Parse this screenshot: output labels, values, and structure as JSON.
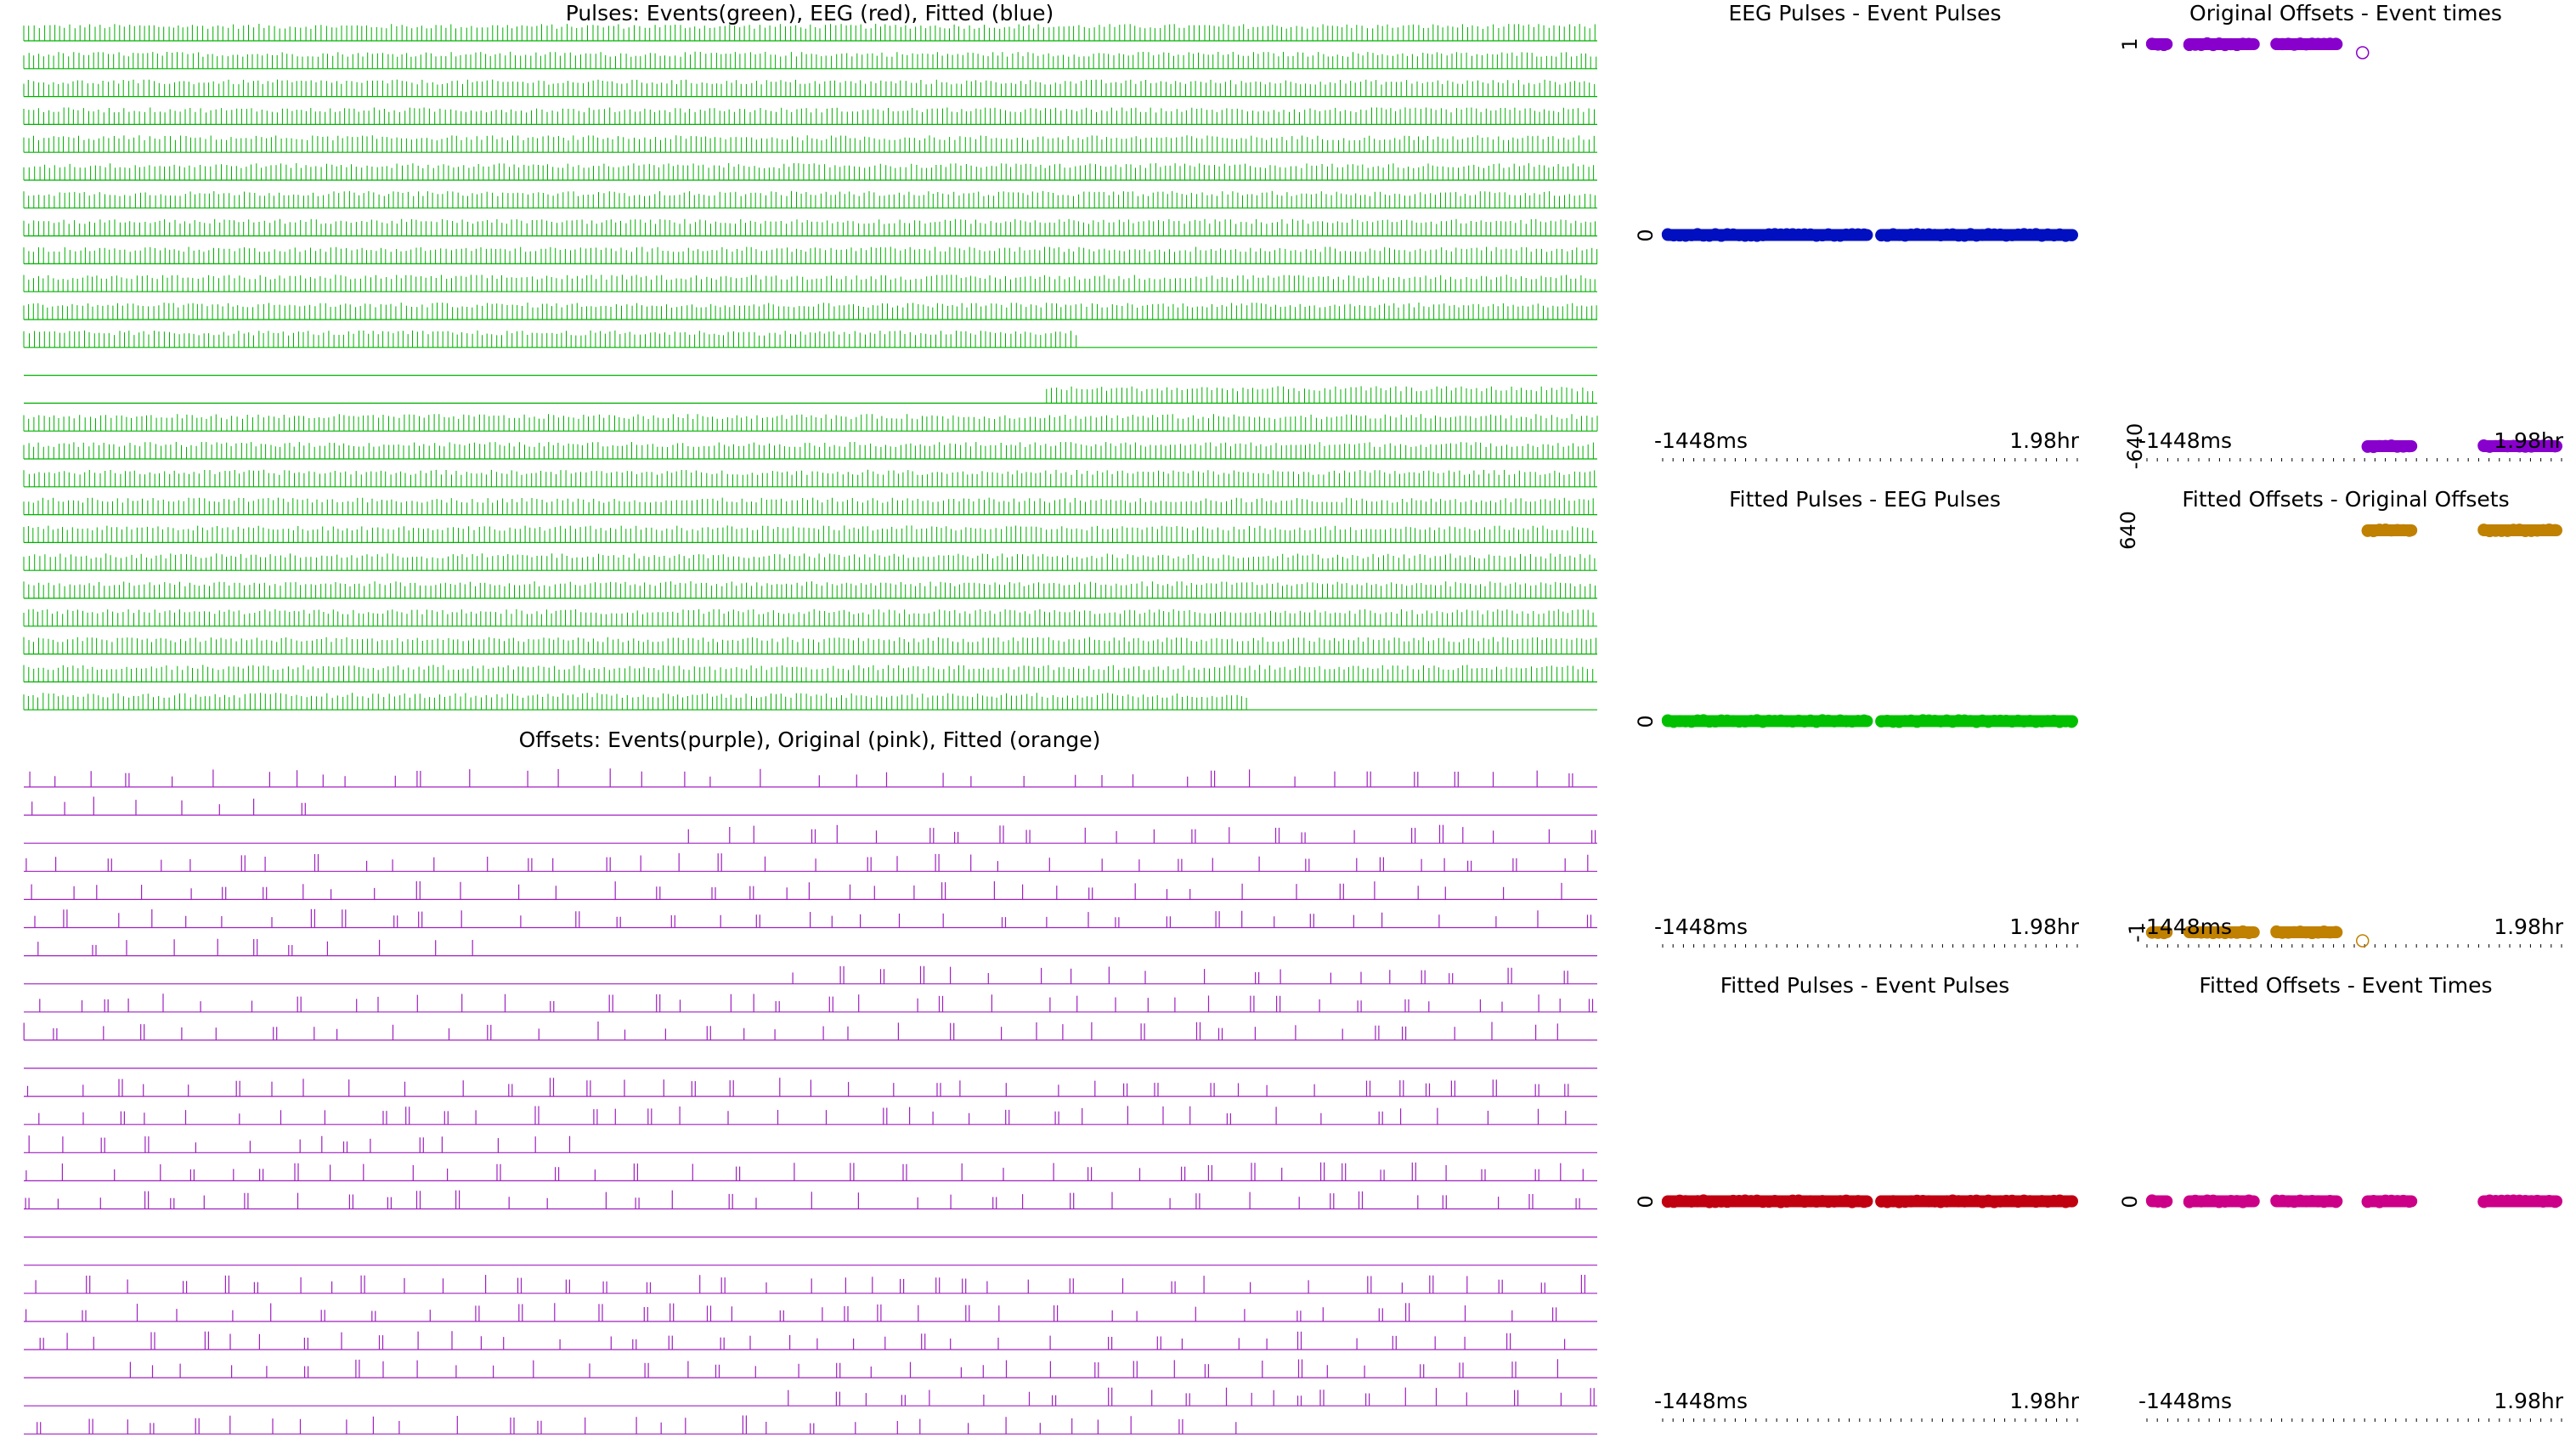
{
  "chart_data": [
    {
      "type": "line",
      "title": "Pulses: Events(green), EEG (red), Fitted (blue)",
      "color": "#00b000",
      "rows": 25,
      "empty_rows": [
        12
      ],
      "partial_rows": {
        "11": [
          0,
          0.67
        ],
        "13": [
          0.65,
          1.0
        ],
        "24": [
          0,
          0.78
        ]
      }
    },
    {
      "type": "line",
      "title": "Offsets: Events(purple), Original (pink), Fitted (orange)",
      "color": "#a020c0",
      "rows": 24,
      "empty_rows": [
        16,
        17
      ]
    },
    {
      "type": "scatter",
      "title": "EEG Pulses - Event Pulses",
      "color": "#0010c0",
      "yticks": [
        "0"
      ],
      "xticks": [
        "-1448ms",
        "1.98hr"
      ],
      "series": [
        {
          "y": 0,
          "segments": [
            [
              0.0,
              0.505
            ],
            [
              0.515,
              1.0
            ]
          ]
        }
      ]
    },
    {
      "type": "scatter",
      "title": "Original Offsets - Event times",
      "color": "#8800cc",
      "yticks": [
        "1",
        "-640"
      ],
      "xticks": [
        "-1448ms",
        "1.98hr"
      ],
      "series": [
        {
          "y": 1,
          "segments": [
            [
              0.0,
              0.06
            ],
            [
              0.09,
              0.27
            ],
            [
              0.3,
              0.47
            ]
          ],
          "outlier": 0.52
        },
        {
          "y": -640,
          "segments": [
            [
              0.52,
              0.65
            ],
            [
              0.8,
              1.0
            ]
          ]
        }
      ]
    },
    {
      "type": "scatter",
      "title": "Fitted Pulses - EEG Pulses",
      "color": "#00c000",
      "yticks": [
        "0"
      ],
      "xticks": [
        "-1448ms",
        "1.98hr"
      ],
      "series": [
        {
          "y": 0,
          "segments": [
            [
              0.0,
              0.505
            ],
            [
              0.515,
              1.0
            ]
          ]
        }
      ]
    },
    {
      "type": "scatter",
      "title": "Fitted Offsets - Original Offsets",
      "color": "#c08000",
      "yticks": [
        "640",
        "-1"
      ],
      "xticks": [
        "-1448ms",
        "1.98hr"
      ],
      "series": [
        {
          "y": 640,
          "segments": [
            [
              0.52,
              0.65
            ],
            [
              0.8,
              1.0
            ]
          ]
        },
        {
          "y": -1,
          "segments": [
            [
              0.0,
              0.06
            ],
            [
              0.09,
              0.27
            ],
            [
              0.3,
              0.47
            ]
          ],
          "outlier": 0.52
        }
      ]
    },
    {
      "type": "scatter",
      "title": "Fitted Pulses - Event Pulses",
      "color": "#c00010",
      "yticks": [
        "0"
      ],
      "xticks": [
        "-1448ms",
        "1.98hr"
      ],
      "series": [
        {
          "y": 0,
          "segments": [
            [
              0.0,
              0.505
            ],
            [
              0.515,
              1.0
            ]
          ]
        }
      ]
    },
    {
      "type": "scatter",
      "title": "Fitted Offsets - Event Times",
      "color": "#cc0088",
      "yticks": [
        "0"
      ],
      "xticks": [
        "-1448ms",
        "1.98hr"
      ],
      "series": [
        {
          "y": 0,
          "segments": [
            [
              0.0,
              0.06
            ],
            [
              0.09,
              0.27
            ],
            [
              0.3,
              0.47
            ],
            [
              0.52,
              0.65
            ],
            [
              0.8,
              1.0
            ]
          ]
        }
      ]
    }
  ]
}
